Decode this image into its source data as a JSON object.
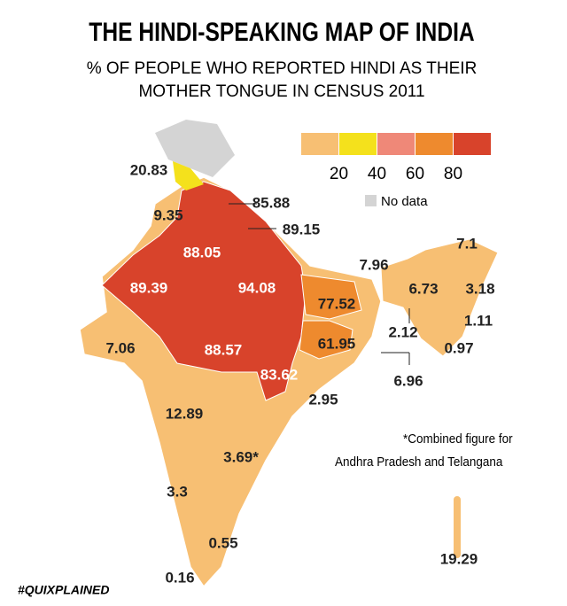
{
  "header": {
    "title": "THE HINDI-SPEAKING MAP OF INDIA",
    "subtitle_lines": [
      "% OF PEOPLE WHO REPORTED HINDI AS THEIR",
      "MOTHER TONGUE IN CENSUS 2011"
    ]
  },
  "legend": {
    "colors": [
      "#f7bf73",
      "#f4e11c",
      "#ef8878",
      "#ee8a2e",
      "#d8432b"
    ],
    "ticks": [
      20,
      40,
      60,
      80
    ],
    "no_data_label": "No data",
    "no_data_color": "#d4d4d4"
  },
  "regions": [
    20.83,
    9.35,
    85.88,
    89.15,
    88.05,
    89.39,
    94.08,
    77.52,
    7.96,
    7.1,
    6.73,
    3.18,
    1.11,
    2.12,
    0.97,
    6.96,
    7.06,
    88.57,
    61.95,
    83.62,
    2.95,
    12.89,
    {
      "value": 3.69,
      "label": "3.69*"
    },
    3.3,
    0.55,
    0.16,
    19.29
  ],
  "footnote_lines": [
    "*Combined figure for",
    "Andhra Pradesh and Telangana"
  ],
  "credit": "#QUIXPLAINED"
}
